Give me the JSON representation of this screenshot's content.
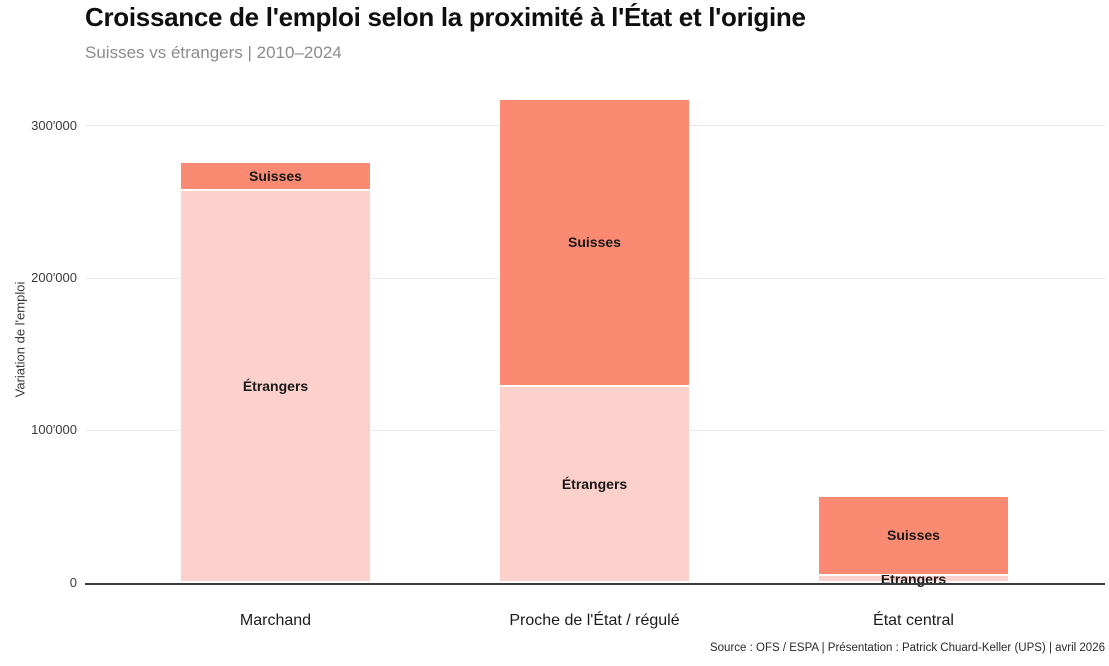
{
  "title": "Croissance de l'emploi selon la proximité à l'État et l'origine",
  "subtitle": "Suisses vs étrangers | 2010–2024",
  "source": "Source : OFS / ESPA | Présentation : Patrick Chuard-Keller (UPS) | avril 2026",
  "colors": {
    "suisses": "#fa8b72",
    "etrangers": "#fcd1cb",
    "grid": "#e9e9e9",
    "axis": "#3c3c3c",
    "title": "#0f0f0f",
    "subtitle": "#8c8c8c"
  },
  "chart_data": {
    "type": "bar",
    "stacked": true,
    "title": "Croissance de l'emploi selon la proximité à l'État et l'origine",
    "subtitle": "Suisses vs étrangers | 2010–2024",
    "ylabel": "Variation de l'emploi",
    "xlabel": "",
    "categories": [
      "Marchand",
      "Proche de l'État / régulé",
      "État central"
    ],
    "series": [
      {
        "name": "Étrangers",
        "color": "#fcd1cb",
        "values": [
          258000,
          129000,
          5000
        ]
      },
      {
        "name": "Suisses",
        "color": "#fa8b72",
        "values": [
          18000,
          189000,
          52000
        ]
      }
    ],
    "stack_order": "bottom-to-top",
    "segment_labels_inside": true,
    "legend": "none",
    "grid": true,
    "ylim": [
      0,
      330000
    ],
    "yticks": [
      0,
      100000,
      200000,
      300000
    ],
    "ytick_labels": [
      "0",
      "100'000",
      "200'000",
      "300'000"
    ]
  }
}
